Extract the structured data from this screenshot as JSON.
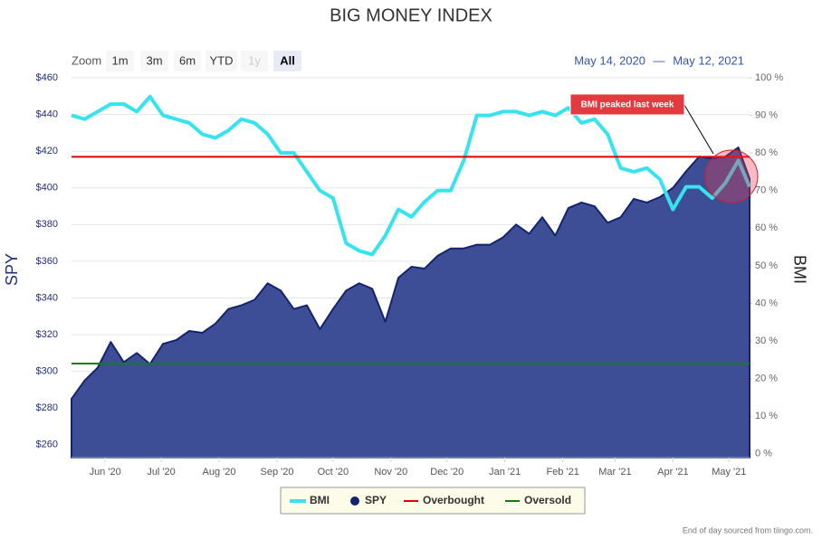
{
  "chart_data": {
    "type": "line",
    "title": "BIG MONEY INDEX",
    "range_selector": {
      "label": "Zoom",
      "buttons": [
        "1m",
        "3m",
        "6m",
        "YTD",
        "1y",
        "All"
      ],
      "selected": 5,
      "disabled": [
        4
      ],
      "from": "May 14, 2020",
      "separator": "—",
      "to": "May 12, 2021"
    },
    "x": [
      "2020-05-14",
      "2020-05-21",
      "2020-05-28",
      "2020-06-04",
      "2020-06-11",
      "2020-06-18",
      "2020-06-25",
      "2020-07-02",
      "2020-07-09",
      "2020-07-16",
      "2020-07-23",
      "2020-07-30",
      "2020-08-06",
      "2020-08-13",
      "2020-08-20",
      "2020-08-27",
      "2020-09-03",
      "2020-09-10",
      "2020-09-17",
      "2020-09-24",
      "2020-10-01",
      "2020-10-08",
      "2020-10-15",
      "2020-10-22",
      "2020-10-29",
      "2020-11-05",
      "2020-11-12",
      "2020-11-19",
      "2020-11-26",
      "2020-12-03",
      "2020-12-10",
      "2020-12-17",
      "2020-12-24",
      "2020-12-31",
      "2021-01-07",
      "2021-01-14",
      "2021-01-21",
      "2021-01-28",
      "2021-02-04",
      "2021-02-11",
      "2021-02-18",
      "2021-02-25",
      "2021-03-04",
      "2021-03-11",
      "2021-03-18",
      "2021-03-25",
      "2021-04-01",
      "2021-04-08",
      "2021-04-15",
      "2021-04-22",
      "2021-04-29",
      "2021-05-06",
      "2021-05-12"
    ],
    "xlim": [
      "2020-05-14",
      "2021-05-12"
    ],
    "xticks": [
      {
        "value": "2020-06-01",
        "label": "Jun '20"
      },
      {
        "value": "2020-07-01",
        "label": "Jul '20"
      },
      {
        "value": "2020-08-01",
        "label": "Aug '20"
      },
      {
        "value": "2020-09-01",
        "label": "Sep '20"
      },
      {
        "value": "2020-10-01",
        "label": "Oct '20"
      },
      {
        "value": "2020-11-01",
        "label": "Nov '20"
      },
      {
        "value": "2020-12-01",
        "label": "Dec '20"
      },
      {
        "value": "2021-01-01",
        "label": "Jan '21"
      },
      {
        "value": "2021-02-01",
        "label": "Feb '21"
      },
      {
        "value": "2021-03-01",
        "label": "Mar '21"
      },
      {
        "value": "2021-04-01",
        "label": "Apr '21"
      },
      {
        "value": "2021-05-01",
        "label": "May '21"
      }
    ],
    "ylabel": "SPY",
    "y2label": "BMI",
    "ylim": [
      253,
      460
    ],
    "yticks": [
      {
        "value": 260,
        "label": "$260"
      },
      {
        "value": 280,
        "label": "$280"
      },
      {
        "value": 300,
        "label": "$300"
      },
      {
        "value": 320,
        "label": "$320"
      },
      {
        "value": 340,
        "label": "$340"
      },
      {
        "value": 360,
        "label": "$360"
      },
      {
        "value": 380,
        "label": "$380"
      },
      {
        "value": 400,
        "label": "$400"
      },
      {
        "value": 420,
        "label": "$420"
      },
      {
        "value": 440,
        "label": "$440"
      },
      {
        "value": 460,
        "label": "$460"
      }
    ],
    "y2lim": [
      -1,
      100
    ],
    "y2ticks": [
      {
        "value": 0,
        "label": "0 %"
      },
      {
        "value": 10,
        "label": "10 %"
      },
      {
        "value": 20,
        "label": "20 %"
      },
      {
        "value": 30,
        "label": "30 %"
      },
      {
        "value": 40,
        "label": "40 %"
      },
      {
        "value": 50,
        "label": "50 %"
      },
      {
        "value": 60,
        "label": "60 %"
      },
      {
        "value": 70,
        "label": "70 %"
      },
      {
        "value": 80,
        "label": "80 %"
      },
      {
        "value": 90,
        "label": "90 %"
      },
      {
        "value": 100,
        "label": "100 %"
      }
    ],
    "grid": true,
    "series": [
      {
        "name": "SPY",
        "type": "area",
        "color": "#14236e",
        "fill": "#3d4e96",
        "axis": "y",
        "values": [
          285,
          295,
          302,
          316,
          305,
          310,
          304,
          315,
          317,
          322,
          321,
          326,
          334,
          336,
          339,
          348,
          344,
          334,
          336,
          323,
          334,
          344,
          348,
          345,
          327,
          351,
          357,
          356,
          363,
          367,
          367,
          369,
          369,
          373,
          380,
          375,
          384,
          374,
          389,
          392,
          390,
          381,
          384,
          394,
          392,
          395,
          400,
          409,
          417,
          416,
          417,
          422,
          405
        ]
      },
      {
        "name": "BMI",
        "type": "line",
        "color": "#36e3ee",
        "axis": "y2",
        "values": [
          90,
          89,
          91,
          93,
          93,
          91,
          95,
          90,
          89,
          88,
          85,
          84,
          86,
          89,
          88,
          85,
          80,
          80,
          75,
          70,
          68,
          56,
          54,
          53,
          58,
          65,
          63,
          67,
          70,
          70,
          78,
          90,
          90,
          91,
          91,
          90,
          91,
          90,
          92,
          88,
          89,
          85,
          76,
          75,
          76,
          73,
          65,
          71,
          71,
          68,
          72,
          78,
          71
        ]
      }
    ],
    "plot_lines": [
      {
        "name": "Overbought",
        "color": "#e00000",
        "value": 79,
        "axis": "y2"
      },
      {
        "name": "Oversold",
        "color": "#108010",
        "value": 24,
        "axis": "y2"
      }
    ],
    "legend": "bottom",
    "annotations": [
      {
        "text": "BMI peaked last week"
      }
    ],
    "credit": "End of day sourced from tiingo.com."
  }
}
